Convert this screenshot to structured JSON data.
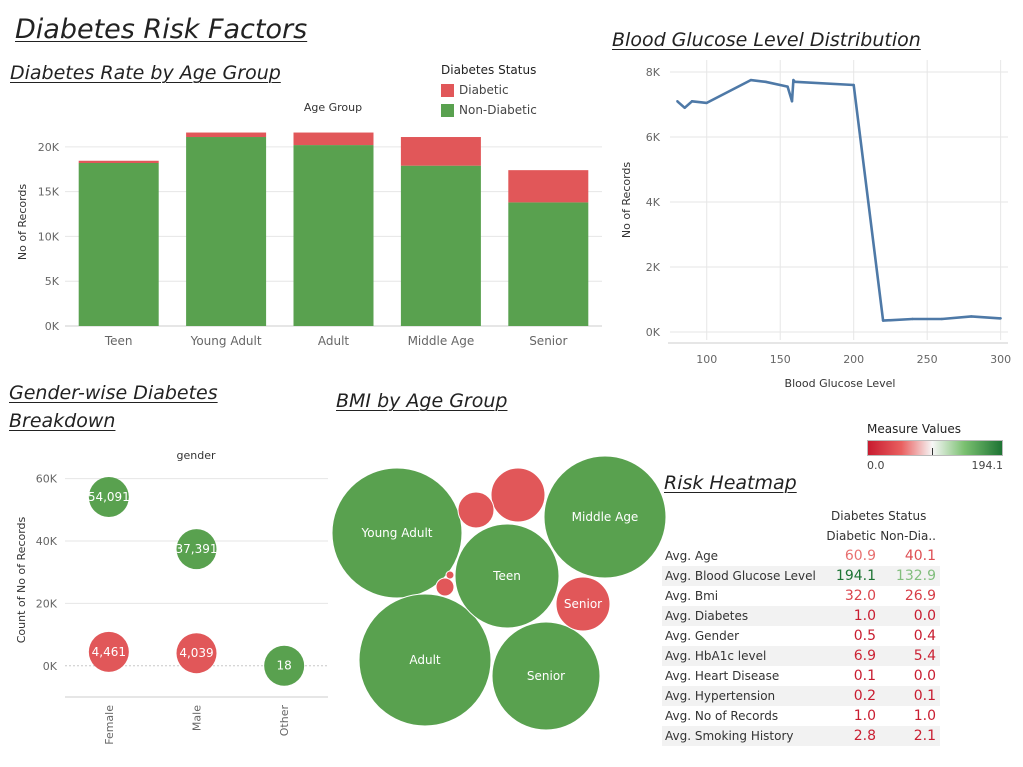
{
  "dashboard": {
    "title": "Diabetes Risk Factors",
    "sections": {
      "age_rate": "Diabetes Rate by Age Group",
      "glucose": "Blood Glucose Level Distribution",
      "gender_line1": "Gender-wise Diabetes",
      "gender_line2": "Breakdown",
      "bmi": "BMI by Age Group",
      "heatmap": "Risk Heatmap"
    }
  },
  "colors": {
    "diabetic": "#e15759",
    "non_diabetic": "#59a14f",
    "line": "#4e79a7",
    "grid": "#e6e6e6"
  },
  "legend_status": {
    "title": "Diabetes Status",
    "items": [
      {
        "label": "Diabetic",
        "color": "#e15759"
      },
      {
        "label": "Non-Diabetic",
        "color": "#59a14f"
      }
    ]
  },
  "measure_legend": {
    "title": "Measure Values",
    "min": "0.0",
    "max": "194.1"
  },
  "chart_data": [
    {
      "id": "age_rate",
      "type": "bar",
      "stacked": true,
      "title": "Diabetes Rate by Age Group",
      "header": "Age Group",
      "ylabel": "No of Records",
      "ylim": [
        0,
        23000
      ],
      "yticks": [
        0,
        5000,
        10000,
        15000,
        20000
      ],
      "ytick_labels": [
        "0K",
        "5K",
        "10K",
        "15K",
        "20K"
      ],
      "categories": [
        "Teen",
        "Young Adult",
        "Adult",
        "Middle Age",
        "Senior"
      ],
      "series": [
        {
          "name": "Non-Diabetic",
          "values": [
            18200,
            21100,
            20200,
            17900,
            13800
          ]
        },
        {
          "name": "Diabetic",
          "values": [
            250,
            500,
            1400,
            3200,
            3600
          ]
        }
      ]
    },
    {
      "id": "glucose",
      "type": "line",
      "title": "Blood Glucose Level Distribution",
      "xlabel": "Blood Glucose Level",
      "ylabel": "No of Records",
      "xlim": [
        75,
        305
      ],
      "ylim": [
        0,
        8000
      ],
      "xticks": [
        100,
        150,
        200,
        250,
        300
      ],
      "yticks": [
        0,
        2000,
        4000,
        6000,
        8000
      ],
      "ytick_labels": [
        "0K",
        "2K",
        "4K",
        "6K",
        "8K"
      ],
      "x": [
        80,
        85,
        90,
        100,
        130,
        140,
        155,
        158,
        159,
        160,
        200,
        220,
        240,
        260,
        280,
        300
      ],
      "y": [
        7100,
        6900,
        7100,
        7050,
        7750,
        7700,
        7550,
        7100,
        7750,
        7700,
        7600,
        350,
        400,
        400,
        480,
        420
      ]
    },
    {
      "id": "gender",
      "type": "scatter",
      "title": "Gender-wise Diabetes Breakdown",
      "header": "gender",
      "ylabel": "Count of No of Records",
      "ylim": [
        -10000,
        65000
      ],
      "yticks": [
        0,
        20000,
        40000,
        60000
      ],
      "ytick_labels": [
        "0K",
        "20K",
        "40K",
        "60K"
      ],
      "categories": [
        "Female",
        "Male",
        "Other"
      ],
      "points": [
        {
          "category": "Female",
          "status": "Non-Diabetic",
          "value": 54091,
          "label": "54,091"
        },
        {
          "category": "Male",
          "status": "Non-Diabetic",
          "value": 37391,
          "label": "37,391"
        },
        {
          "category": "Other",
          "status": "Non-Diabetic",
          "value": 18,
          "label": "18"
        },
        {
          "category": "Female",
          "status": "Diabetic",
          "value": 4461,
          "label": "4,461"
        },
        {
          "category": "Male",
          "status": "Diabetic",
          "value": 4039,
          "label": "4,039"
        }
      ]
    },
    {
      "id": "bmi",
      "type": "bubble",
      "title": "BMI by Age Group",
      "bubbles": [
        {
          "label": "Young Adult",
          "status": "Non-Diabetic",
          "value": 100
        },
        {
          "label": "Middle Age",
          "status": "Non-Diabetic",
          "value": 94
        },
        {
          "label": "Adult",
          "status": "Non-Diabetic",
          "value": 100
        },
        {
          "label": "Senior",
          "status": "Non-Diabetic",
          "value": 66
        },
        {
          "label": "Teen",
          "status": "Non-Diabetic",
          "value": 68
        },
        {
          "label": "Senior",
          "status": "Diabetic",
          "value": 28
        },
        {
          "label": "",
          "status": "Diabetic",
          "value": 18
        },
        {
          "label": "",
          "status": "Diabetic",
          "value": 8
        },
        {
          "label": "",
          "status": "Diabetic",
          "value": 2
        },
        {
          "label": "",
          "status": "Diabetic",
          "value": 0.4
        }
      ]
    },
    {
      "id": "heatmap",
      "type": "table",
      "title": "Risk Heatmap",
      "header": "Diabetes Status",
      "columns": [
        "Diabetic",
        "Non-Dia.."
      ],
      "rows": [
        {
          "label": "Avg. Age",
          "values": [
            60.9,
            40.1
          ],
          "display": [
            "60.9",
            "40.1"
          ]
        },
        {
          "label": "Avg. Blood Glucose Level",
          "values": [
            194.1,
            132.9
          ],
          "display": [
            "194.1",
            "132.9"
          ]
        },
        {
          "label": "Avg. Bmi",
          "values": [
            32.0,
            26.9
          ],
          "display": [
            "32.0",
            "26.9"
          ]
        },
        {
          "label": "Avg. Diabetes",
          "values": [
            1.0,
            0.0
          ],
          "display": [
            "1.0",
            "0.0"
          ]
        },
        {
          "label": "Avg. Gender",
          "values": [
            0.5,
            0.4
          ],
          "display": [
            "0.5",
            "0.4"
          ]
        },
        {
          "label": "Avg. HbA1c level",
          "values": [
            6.9,
            5.4
          ],
          "display": [
            "6.9",
            "5.4"
          ]
        },
        {
          "label": "Avg. Heart Disease",
          "values": [
            0.1,
            0.0
          ],
          "display": [
            "0.1",
            "0.0"
          ]
        },
        {
          "label": "Avg. Hypertension",
          "values": [
            0.2,
            0.1
          ],
          "display": [
            "0.2",
            "0.1"
          ]
        },
        {
          "label": "Avg. No of Records",
          "values": [
            1.0,
            1.0
          ],
          "display": [
            "1.0",
            "1.0"
          ]
        },
        {
          "label": "Avg. Smoking History",
          "values": [
            2.8,
            2.1
          ],
          "display": [
            "2.8",
            "2.1"
          ]
        }
      ]
    }
  ]
}
